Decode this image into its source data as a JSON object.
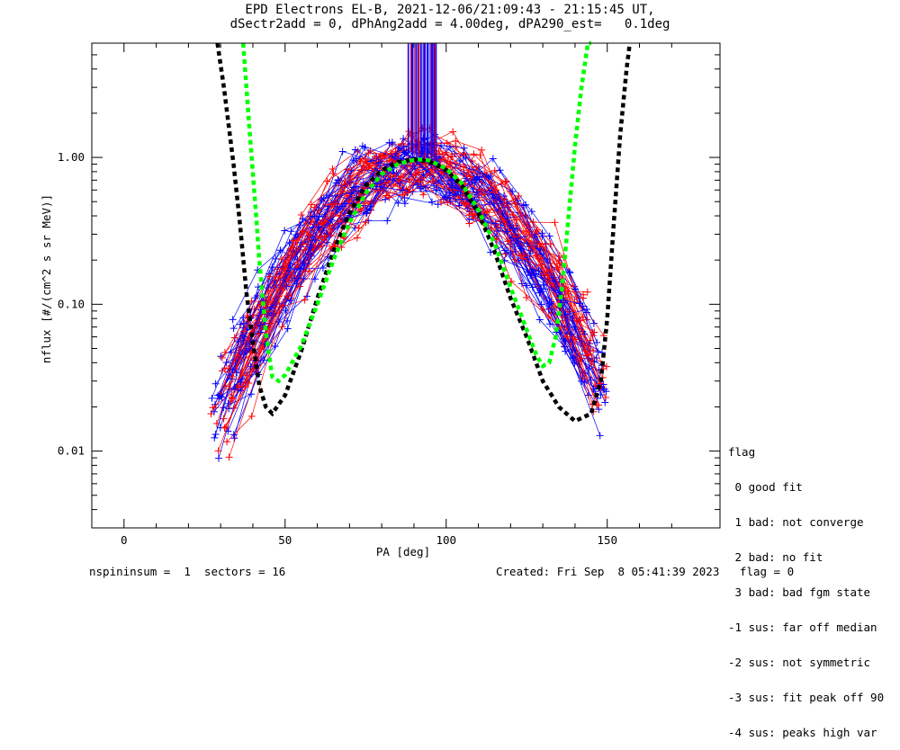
{
  "title_line1": "EPD Electrons EL-B, 2021-12-06/21:09:43 - 21:15:45 UT,",
  "title_line2": "dSectr2add = 0, dPhAng2add = 4.00deg, dPA290_est=   0.1deg",
  "footer_left": "nspininsum =  1  sectors = 16",
  "footer_right": "Created: Fri Sep  8 05:41:39 2023   flag = 0",
  "legend": {
    "header": "flag",
    "items": [
      " 0 good fit",
      " 1 bad: not converge",
      " 2 bad: no fit",
      " 3 bad: bad fgm state",
      "-1 sus: far off median",
      "-2 sus: not symmetric",
      "-3 sus: fit peak off 90",
      "-4 sus: peaks high var"
    ]
  },
  "colors": {
    "red": "#ff0000",
    "blue": "#0000ff",
    "black": "#000000",
    "green": "#00ff00"
  },
  "chart_data": {
    "type": "line",
    "xlabel": "PA [deg]",
    "ylabel": "nflux [#/(cm^2 s sr MeV)]",
    "xlim": [
      -10,
      185
    ],
    "ylim": [
      0.003,
      6.0
    ],
    "yscale": "log",
    "xticks": [
      0,
      50,
      100,
      150
    ],
    "yticks": [
      0.01,
      0.1,
      1.0
    ],
    "ytick_labels": [
      "0.01",
      "0.10",
      "1.00"
    ],
    "series": [
      {
        "color": "black",
        "style": "dashed",
        "x": [
          29,
          31,
          34,
          36,
          38,
          40,
          42,
          44,
          46,
          50,
          55,
          60,
          65,
          70,
          75,
          80,
          85,
          90,
          95,
          100,
          105,
          110,
          115,
          120,
          125,
          130,
          135,
          140,
          145,
          148,
          150,
          152,
          154,
          156,
          157
        ],
        "y": [
          6,
          3,
          0.9,
          0.35,
          0.12,
          0.055,
          0.028,
          0.02,
          0.018,
          0.024,
          0.048,
          0.11,
          0.23,
          0.42,
          0.64,
          0.82,
          0.93,
          0.97,
          0.93,
          0.82,
          0.64,
          0.42,
          0.23,
          0.11,
          0.06,
          0.03,
          0.02,
          0.016,
          0.018,
          0.03,
          0.08,
          0.35,
          1.4,
          4,
          6
        ]
      },
      {
        "color": "green",
        "style": "dashed",
        "x": [
          37,
          39,
          41,
          42,
          44,
          46,
          48,
          50,
          55,
          60,
          65,
          70,
          75,
          80,
          85,
          90,
          93,
          95,
          100,
          105,
          110,
          115,
          120,
          125,
          128,
          130,
          132,
          134,
          136,
          138,
          140,
          142,
          144,
          145
        ],
        "y": [
          6,
          1.5,
          0.4,
          0.2,
          0.065,
          0.032,
          0.03,
          0.033,
          0.052,
          0.1,
          0.2,
          0.36,
          0.57,
          0.77,
          0.9,
          0.96,
          0.97,
          0.95,
          0.84,
          0.66,
          0.44,
          0.26,
          0.13,
          0.067,
          0.045,
          0.038,
          0.04,
          0.06,
          0.13,
          0.4,
          1.2,
          3,
          6,
          6
        ]
      }
    ],
    "scatter_note": "Dense bundles of red and blue measurement traces with + markers follow the bell-shaped distribution peaking near PA 90 deg (~0.9), with vertical excursions above 1.0 near PA 88-96 deg."
  }
}
